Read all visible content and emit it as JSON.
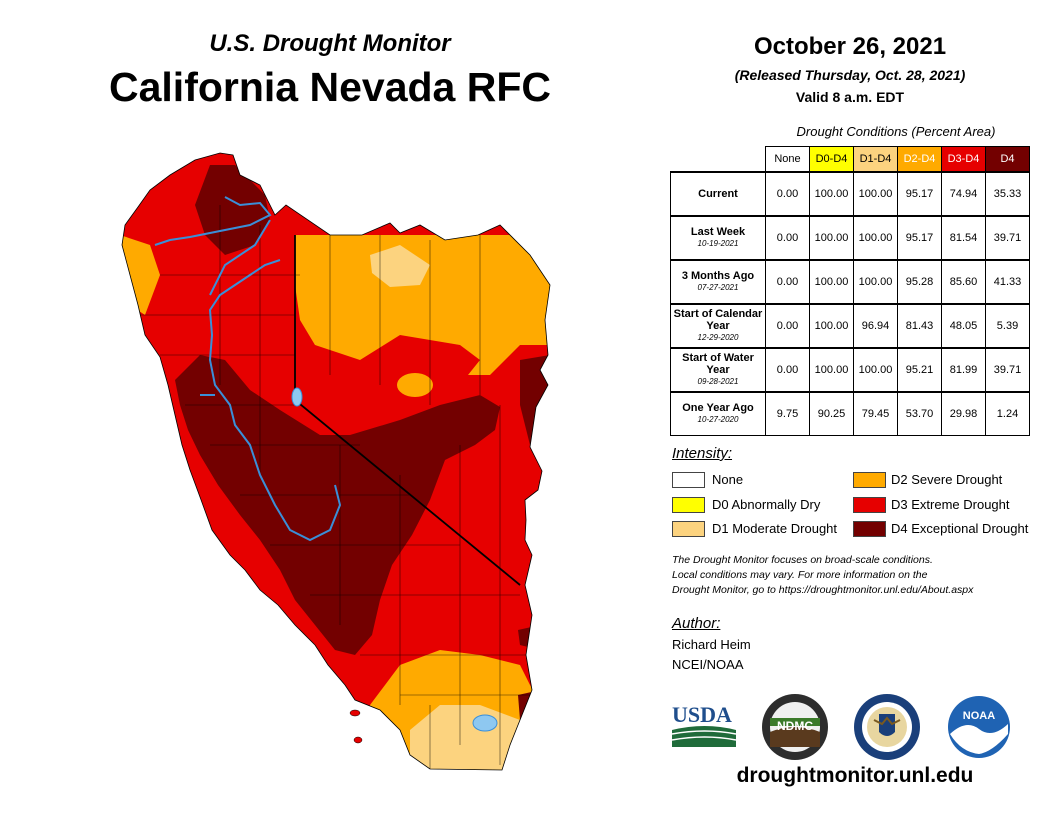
{
  "header": {
    "subtitle": "U.S. Drought Monitor",
    "title": "California Nevada RFC",
    "date": "October 26, 2021",
    "released": "(Released Thursday, Oct. 28, 2021)",
    "valid": "Valid 8 a.m. EDT"
  },
  "table": {
    "caption": "Drought Conditions (Percent Area)",
    "columns": [
      "None",
      "D0-D4",
      "D1-D4",
      "D2-D4",
      "D3-D4",
      "D4"
    ],
    "rows": [
      {
        "label": "Current",
        "date": "",
        "values": [
          "0.00",
          "100.00",
          "100.00",
          "95.17",
          "74.94",
          "35.33"
        ]
      },
      {
        "label": "Last Week",
        "date": "10-19-2021",
        "values": [
          "0.00",
          "100.00",
          "100.00",
          "95.17",
          "81.54",
          "39.71"
        ]
      },
      {
        "label": "3 Months Ago",
        "date": "07-27-2021",
        "values": [
          "0.00",
          "100.00",
          "100.00",
          "95.28",
          "85.60",
          "41.33"
        ]
      },
      {
        "label": "Start of Calendar Year",
        "date": "12-29-2020",
        "values": [
          "0.00",
          "100.00",
          "96.94",
          "81.43",
          "48.05",
          "5.39"
        ]
      },
      {
        "label": "Start of Water Year",
        "date": "09-28-2021",
        "values": [
          "0.00",
          "100.00",
          "100.00",
          "95.21",
          "81.99",
          "39.71"
        ]
      },
      {
        "label": "One Year Ago",
        "date": "10-27-2020",
        "values": [
          "9.75",
          "90.25",
          "79.45",
          "53.70",
          "29.98",
          "1.24"
        ]
      }
    ]
  },
  "legend": {
    "title": "Intensity:",
    "items": [
      {
        "label": "None",
        "color": "#ffffff"
      },
      {
        "label": "D0 Abnormally Dry",
        "color": "#ffff00"
      },
      {
        "label": "D1 Moderate Drought",
        "color": "#fcd37f"
      },
      {
        "label": "D2 Severe Drought",
        "color": "#ffaa00"
      },
      {
        "label": "D3 Extreme Drought",
        "color": "#e60000"
      },
      {
        "label": "D4 Exceptional Drought",
        "color": "#730000"
      }
    ]
  },
  "note": {
    "line1": "The Drought Monitor focuses on broad-scale conditions.",
    "line2": "Local conditions may vary. For more information on the",
    "line3": "Drought Monitor, go to https://droughtmonitor.unl.edu/About.aspx"
  },
  "author": {
    "label": "Author:",
    "name": "Richard Heim",
    "org": "NCEI/NOAA"
  },
  "logos": {
    "usda": "USDA",
    "ndmc": "NDMC",
    "noaa": "NOAA"
  },
  "site": "droughtmonitor.unl.edu",
  "colors": {
    "d1": "#fcd37f",
    "d2": "#ffaa00",
    "d3": "#e60000",
    "d4": "#730000",
    "water": "#3a8fd8"
  }
}
